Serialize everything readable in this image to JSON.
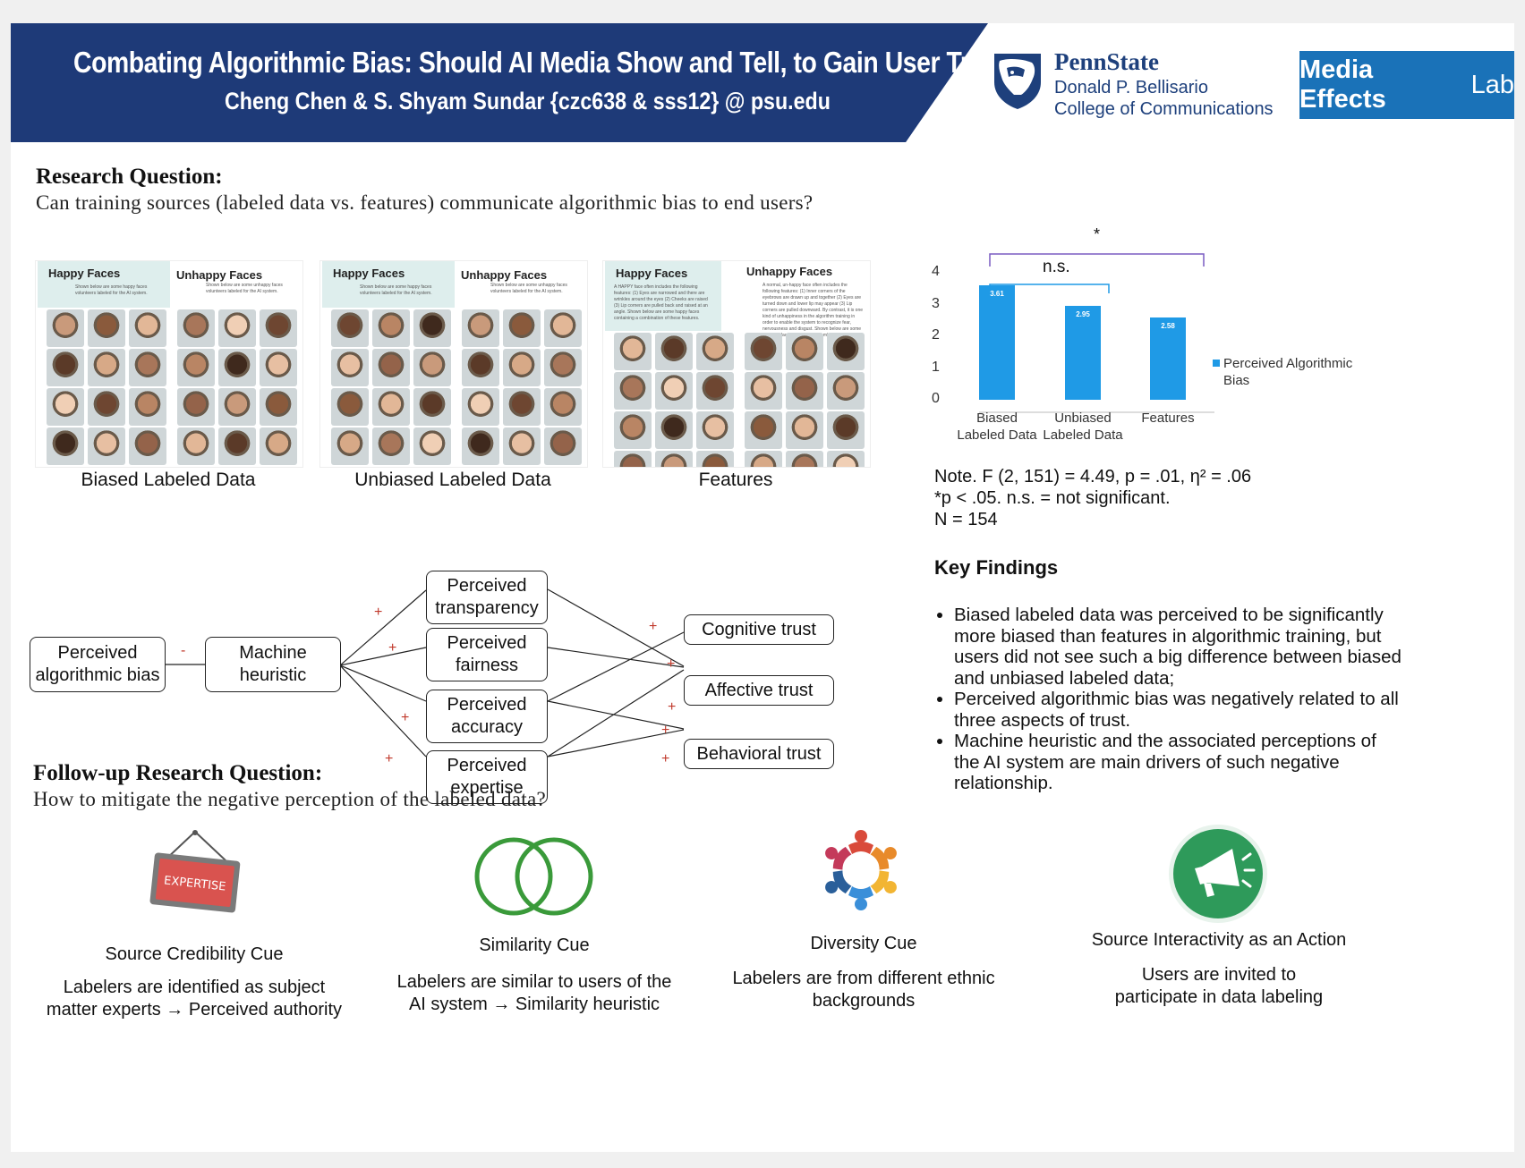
{
  "header": {
    "title": "Combating Algorithmic Bias: Should AI Media Show and Tell, to Gain User Trust?",
    "authors": "Cheng Chen & S. Shyam Sundar {czc638 & sss12} @ psu.edu",
    "psu_name": "PennState",
    "psu_college_line1": "Donald P. Bellisario",
    "psu_college_line2": "College of Communications",
    "lab_bold": "Media Effects",
    "lab_rest": "Lab",
    "band_color": "#1e3a78",
    "lab_color": "#1a72b8"
  },
  "research_question": {
    "heading": "Research Question:",
    "text": "Can training sources (labeled data vs. features) communicate algorithmic bias to end users?"
  },
  "panels": [
    {
      "caption": "Biased Labeled Data",
      "left_head": "Happy Faces",
      "right_head": "Unhappy Faces",
      "left_text": "Shown below are some happy faces volunteers labeled for the AI system.",
      "right_text": "Shown below are some unhappy faces volunteers labeled for the AI system."
    },
    {
      "caption": "Unbiased Labeled Data",
      "left_head": "Happy Faces",
      "right_head": "Unhappy Faces",
      "left_text": "Shown below are some happy faces volunteers labeled for the AI system.",
      "right_text": "Shown below are some unhappy faces volunteers labeled for the AI system."
    },
    {
      "caption": "Features",
      "left_head": "Happy Faces",
      "right_head": "Unhappy Faces",
      "left_text": "A HAPPY face often includes the following features: (1) Eyes are narrowed and there are wrinkles around the eyes (2) Cheeks are raised (3) Lip corners are pulled back and raised at an angle. Shown below are some happy faces containing a combination of these features.",
      "right_text": "A normal, un-happy face often includes the following features: (1) Inner corners of the eyebrows are drawn up and together (2) Eyes are turned down and lower lip may appear (3) Lip corners are pulled downward. By contrast, it is one kind of unhappiness in the algorithm training in order to enable the system to recognize fear, nervousness and disgust. Shown below are some unhappy faces which with a combination of these features."
    }
  ],
  "model": {
    "bias_box": "Perceived algorithmic bias",
    "heuristic_box": "Machine heuristic",
    "minus_sign": "-",
    "plus_sign": "+",
    "mediators": [
      "Perceived transparency",
      "Perceived fairness",
      "Perceived accuracy",
      "Perceived expertise"
    ],
    "outcomes": [
      "Cognitive trust",
      "Affective trust",
      "Behavioral trust"
    ]
  },
  "chart_data": {
    "type": "bar",
    "categories": [
      "Biased Labeled Data",
      "Unbiased Labeled Data",
      "Features"
    ],
    "series": [
      {
        "name": "Perceived Algorithmic Bias",
        "values": [
          3.61,
          2.95,
          2.58
        ],
        "color": "#1f9ae6"
      }
    ],
    "data_labels": [
      "3.61",
      "2.95",
      "2.58"
    ],
    "ylim": [
      0,
      4
    ],
    "yticks": [
      "0",
      "1",
      "2",
      "3",
      "4"
    ],
    "grid": false,
    "legend_position": "right",
    "annotations": {
      "outer_bracket": "*",
      "inner_bracket": "n.s."
    }
  },
  "stats_note": {
    "line1": "Note. F (2, 151) = 4.49, p = .01, η² = .06",
    "line2": "*p < .05. n.s. = not significant.",
    "line3": "N = 154"
  },
  "key_findings": {
    "heading": "Key Findings",
    "items": [
      "Biased labeled data was perceived to be significantly more biased than features in algorithmic training, but users did not see such a big difference between biased and unbiased labeled data;",
      "Perceived algorithmic bias was negatively related to all three aspects of trust.",
      "Machine heuristic and the associated perceptions of the AI system are main drivers of such negative relationship."
    ]
  },
  "followup": {
    "heading": "Follow-up Research Question:",
    "text": "How to mitigate the negative perception of the labeled data?"
  },
  "cues": [
    {
      "icon": "expertise-sign-icon",
      "sign_text": "EXPERTISE",
      "title": "Source Credibility Cue",
      "desc1": "Labelers are identified as subject",
      "desc2": "matter experts → Perceived authority"
    },
    {
      "icon": "interlocking-rings-icon",
      "title": "Similarity Cue",
      "desc1": "Labelers are similar to users of the",
      "desc2": "AI system → Similarity heuristic"
    },
    {
      "icon": "diverse-people-circle-icon",
      "title": "Diversity Cue",
      "desc1": "Labelers are from different ethnic",
      "desc2": "backgrounds"
    },
    {
      "icon": "megaphone-icon",
      "title": "Source Interactivity as an Action",
      "desc1": "Users are invited to",
      "desc2": "participate in data labeling"
    }
  ]
}
